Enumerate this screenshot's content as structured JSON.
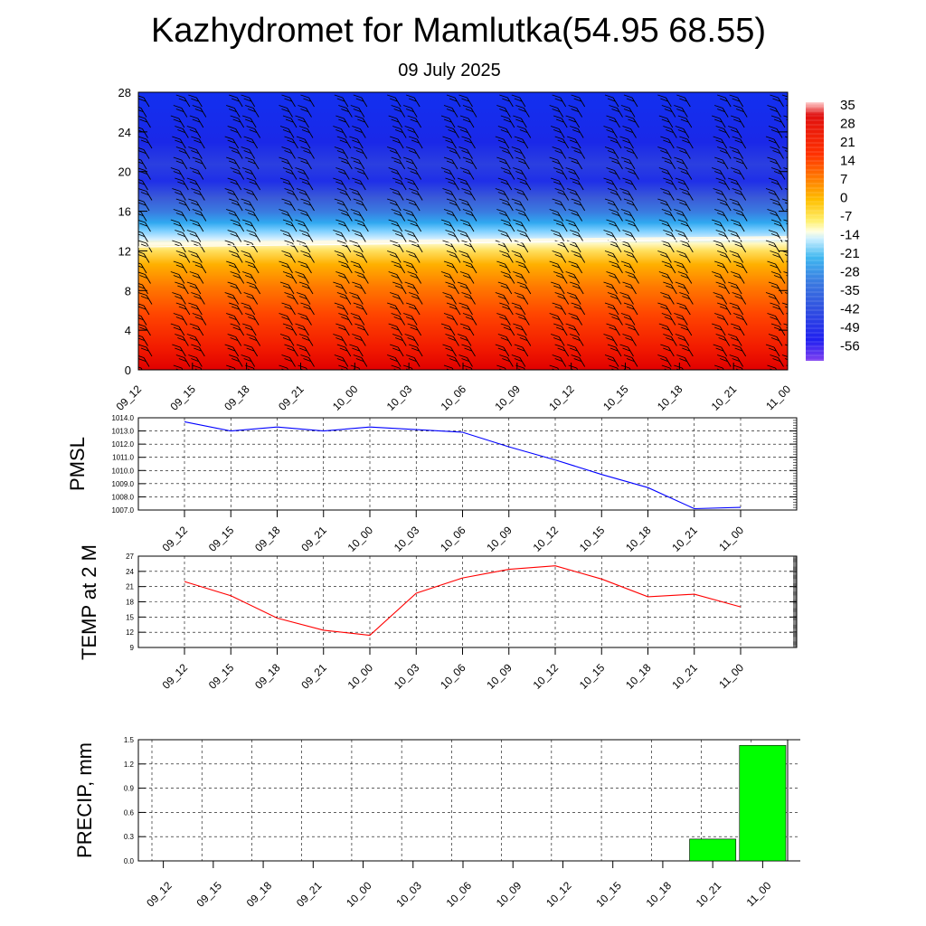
{
  "header": {
    "title": "Kazhydromet for Mamlutka(54.95 68.55)",
    "subtitle": "09 July 2025"
  },
  "chart_data": [
    {
      "type": "heatmap",
      "id": "vertical-section",
      "title": "",
      "x_labels": [
        "09_12",
        "09_15",
        "09_18",
        "09_21",
        "10_00",
        "10_03",
        "10_06",
        "10_09",
        "10_12",
        "10_15",
        "10_18",
        "10_21",
        "11_00"
      ],
      "y_ticks": [
        0,
        4,
        8,
        12,
        16,
        20,
        24,
        28
      ],
      "ylim": [
        0,
        28
      ],
      "freezing_level_left": 12.4,
      "freezing_level_right": 13.2,
      "colorbar_labels": [
        "35",
        "28",
        "21",
        "14",
        "7",
        "0",
        "-7",
        "-14",
        "-21",
        "-28",
        "-35",
        "-42",
        "-49",
        "-56"
      ],
      "colorbar_range": [
        -63,
        35
      ],
      "wind_barbs": "present",
      "grid": false
    },
    {
      "type": "line",
      "id": "pmsl",
      "ylabel": "PMSL",
      "x": [
        "09_12",
        "09_15",
        "09_18",
        "09_21",
        "10_00",
        "10_03",
        "10_06",
        "10_09",
        "10_12",
        "10_15",
        "10_18",
        "10_21",
        "11_00"
      ],
      "y_ticks": [
        "1007.0",
        "1008.0",
        "1009.0",
        "1010.0",
        "1011.0",
        "1012.0",
        "1013.0",
        "1014.0"
      ],
      "ylim": [
        1007,
        1014
      ],
      "series": [
        {
          "values": [
            1013.7,
            1013.0,
            1013.3,
            1013.0,
            1013.3,
            1013.1,
            1012.9,
            1011.8,
            1010.8,
            1009.7,
            1008.7,
            1007.1,
            1007.2
          ],
          "color": "#0000ff"
        }
      ],
      "grid": true
    },
    {
      "type": "line",
      "id": "temp",
      "ylabel": "TEMP at 2 M",
      "x": [
        "09_12",
        "09_15",
        "09_18",
        "09_21",
        "10_00",
        "10_03",
        "10_06",
        "10_09",
        "10_12",
        "10_15",
        "10_18",
        "10_21",
        "11_00"
      ],
      "y_ticks": [
        "9",
        "12",
        "15",
        "18",
        "21",
        "24",
        "27"
      ],
      "ylim": [
        9,
        27
      ],
      "series": [
        {
          "values": [
            22.0,
            19.2,
            14.8,
            12.4,
            11.4,
            19.7,
            22.7,
            24.4,
            25.1,
            22.5,
            19.0,
            19.5,
            17.0
          ],
          "color": "#ff0000"
        }
      ],
      "grid": true
    },
    {
      "type": "bar",
      "id": "precip",
      "ylabel": "PRECIP, mm",
      "categories": [
        "09_12",
        "09_15",
        "09_18",
        "09_21",
        "10_00",
        "10_03",
        "10_06",
        "10_09",
        "10_12",
        "10_15",
        "10_18",
        "10_21",
        "11_00"
      ],
      "values": [
        0,
        0,
        0,
        0,
        0,
        0,
        0,
        0,
        0,
        0,
        0,
        0.27,
        1.43
      ],
      "y_ticks": [
        "0.0",
        "0.3",
        "0.6",
        "0.9",
        "1.2",
        "1.5"
      ],
      "ylim": [
        0,
        1.5
      ],
      "bar_color": "#00ff00",
      "grid": true
    }
  ]
}
